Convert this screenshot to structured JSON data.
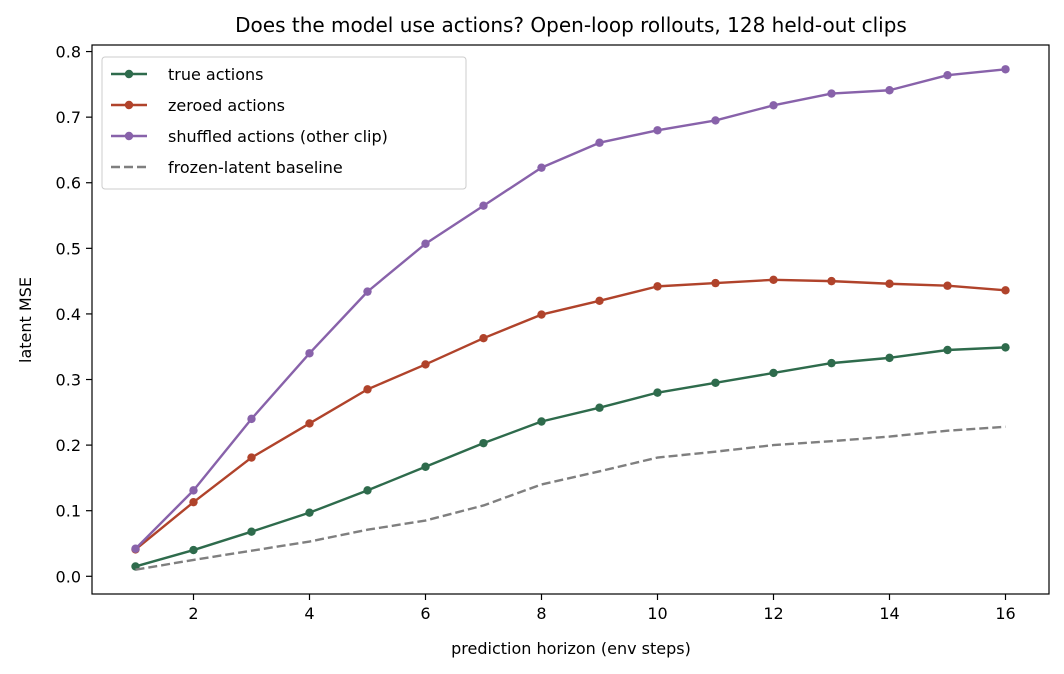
{
  "chart_data": {
    "type": "line",
    "title": "Does the model use actions? Open-loop rollouts, 128 held-out clips",
    "xlabel": "prediction horizon (env steps)",
    "ylabel": "latent MSE",
    "xlim": [
      0.25,
      16.75
    ],
    "ylim": [
      -0.027,
      0.81
    ],
    "xticks": [
      2,
      4,
      6,
      8,
      10,
      12,
      14,
      16
    ],
    "yticks": [
      0.0,
      0.1,
      0.2,
      0.3,
      0.4,
      0.5,
      0.6,
      0.7,
      0.8
    ],
    "ytick_labels": [
      "0.0",
      "0.1",
      "0.2",
      "0.3",
      "0.4",
      "0.5",
      "0.6",
      "0.7",
      "0.8"
    ],
    "grid": false,
    "legend_position": "top-left",
    "x": [
      1,
      2,
      3,
      4,
      5,
      6,
      7,
      8,
      9,
      10,
      11,
      12,
      13,
      14,
      15,
      16
    ],
    "series": [
      {
        "name": "true actions",
        "color": "#2e6b4c",
        "style": "solid",
        "markers": true,
        "values": [
          0.015,
          0.04,
          0.068,
          0.097,
          0.131,
          0.167,
          0.203,
          0.236,
          0.257,
          0.28,
          0.295,
          0.31,
          0.325,
          0.333,
          0.345,
          0.349
        ]
      },
      {
        "name": "zeroed actions",
        "color": "#b0432b",
        "style": "solid",
        "markers": true,
        "values": [
          0.041,
          0.113,
          0.181,
          0.233,
          0.285,
          0.323,
          0.363,
          0.399,
          0.42,
          0.442,
          0.447,
          0.452,
          0.45,
          0.446,
          0.443,
          0.436
        ]
      },
      {
        "name": "shuffled actions (other clip)",
        "color": "#8862aa",
        "style": "solid",
        "markers": true,
        "values": [
          0.042,
          0.131,
          0.24,
          0.34,
          0.434,
          0.507,
          0.565,
          0.623,
          0.661,
          0.68,
          0.695,
          0.718,
          0.736,
          0.741,
          0.764,
          0.773
        ]
      },
      {
        "name": "frozen-latent baseline",
        "color": "#7f7f7f",
        "style": "dashed",
        "markers": false,
        "values": [
          0.01,
          0.025,
          0.039,
          0.053,
          0.071,
          0.085,
          0.108,
          0.14,
          0.16,
          0.181,
          0.19,
          0.2,
          0.206,
          0.213,
          0.222,
          0.228
        ]
      }
    ]
  }
}
